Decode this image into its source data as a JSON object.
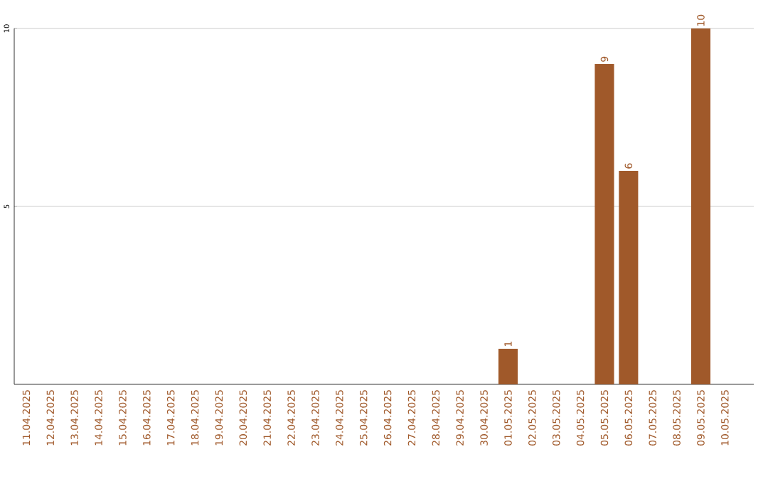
{
  "chart_data": {
    "type": "bar",
    "categories": [
      "11.04.2025",
      "12.04.2025",
      "13.04.2025",
      "14.04.2025",
      "15.04.2025",
      "16.04.2025",
      "17.04.2025",
      "18.04.2025",
      "19.04.2025",
      "20.04.2025",
      "21.04.2025",
      "22.04.2025",
      "23.04.2025",
      "24.04.2025",
      "25.04.2025",
      "26.04.2025",
      "27.04.2025",
      "28.04.2025",
      "29.04.2025",
      "30.04.2025",
      "01.05.2025",
      "02.05.2025",
      "03.05.2025",
      "04.05.2025",
      "05.05.2025",
      "06.05.2025",
      "07.05.2025",
      "08.05.2025",
      "09.05.2025",
      "10.05.2025"
    ],
    "values": [
      0,
      0,
      0,
      0,
      0,
      0,
      0,
      0,
      0,
      0,
      0,
      0,
      0,
      0,
      0,
      0,
      0,
      0,
      0,
      0,
      1,
      0,
      0,
      0,
      9,
      6,
      0,
      0,
      10,
      0
    ],
    "value_labels": [
      null,
      null,
      null,
      null,
      null,
      null,
      null,
      null,
      null,
      null,
      null,
      null,
      null,
      null,
      null,
      null,
      null,
      null,
      null,
      null,
      "1",
      null,
      null,
      null,
      "9",
      "6",
      null,
      null,
      "10",
      null
    ],
    "color": "#a0592a",
    "ylim": [
      0,
      10
    ],
    "yticks": [
      5,
      10
    ],
    "grid": "y"
  }
}
